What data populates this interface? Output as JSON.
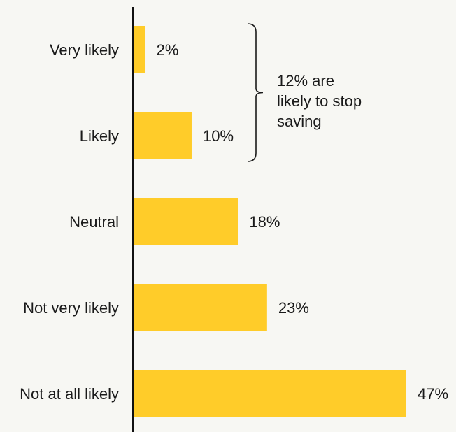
{
  "chart_data": {
    "type": "bar",
    "orientation": "horizontal",
    "categories": [
      "Very likely",
      "Likely",
      "Neutral",
      "Not very likely",
      "Not at all likely"
    ],
    "values": [
      2,
      10,
      18,
      23,
      47
    ],
    "value_labels": [
      "2%",
      "10%",
      "18%",
      "23%",
      "47%"
    ],
    "bar_color": "#ffcc29",
    "axis_color": "#111111",
    "xlim": [
      0,
      47
    ],
    "grid": false,
    "annotation": {
      "lines": [
        "12% are",
        "likely to stop",
        "saving"
      ],
      "spans": [
        "Very likely",
        "Likely"
      ]
    }
  }
}
